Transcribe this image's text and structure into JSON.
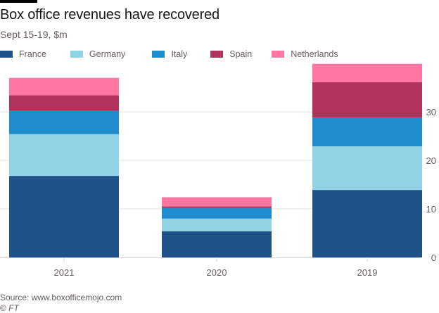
{
  "header": {
    "title": "Box office revenues have recovered",
    "subtitle": "Sept 15-19, $m"
  },
  "footer": {
    "source": "Source: www.boxofficemojo.com",
    "credit": "© FT"
  },
  "chart_data": {
    "type": "bar",
    "stacked": true,
    "title": "Box office revenues have recovered",
    "subtitle": "Sept 15-19, $m",
    "xlabel": "",
    "ylabel": "",
    "categories": [
      "2021",
      "2020",
      "2019"
    ],
    "series": [
      {
        "name": "France",
        "color": "#1f5289",
        "values": [
          16.8,
          5.4,
          13.9
        ]
      },
      {
        "name": "Germany",
        "color": "#93d3e6",
        "values": [
          8.6,
          2.6,
          9.0
        ]
      },
      {
        "name": "Italy",
        "color": "#1e8ccd",
        "values": [
          4.8,
          2.2,
          5.9
        ]
      },
      {
        "name": "Spain",
        "color": "#b1325a",
        "values": [
          3.2,
          0.3,
          7.3
        ]
      },
      {
        "name": "Netherlands",
        "color": "#ff76a0",
        "values": [
          3.6,
          1.9,
          3.8
        ]
      }
    ],
    "ylim": [
      0,
      40
    ],
    "yticks": [
      0,
      10,
      20,
      30
    ],
    "ytick_labels": [
      "0",
      "10",
      "20",
      "30"
    ],
    "y_axis_side": "right",
    "grid": true,
    "legend_position": "top-left"
  }
}
